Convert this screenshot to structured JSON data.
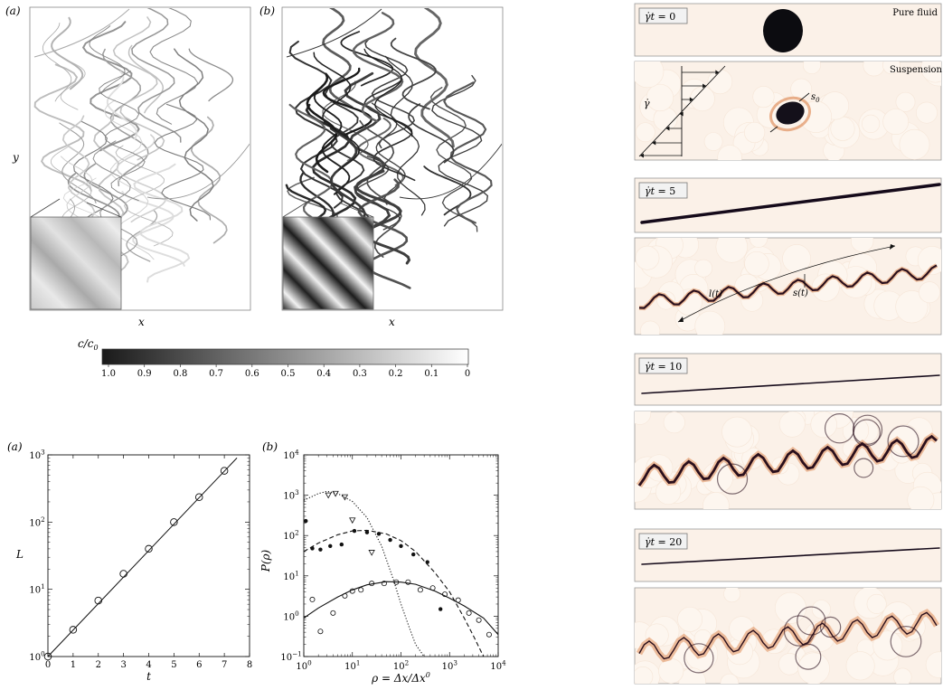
{
  "top_panels": {
    "panel_a_label": "(a)",
    "panel_b_label": "(b)",
    "xlabel": "x",
    "ylabel": "y"
  },
  "colorbar": {
    "label": "c/c",
    "label_sub": "0",
    "ticks": [
      "1.0",
      "0.9",
      "0.8",
      "0.7",
      "0.6",
      "0.5",
      "0.4",
      "0.3",
      "0.2",
      "0.1",
      "0"
    ]
  },
  "colors": {
    "ink": "#111111",
    "image_background": "#fbf1e8",
    "strand_dark": "#2a0f1c",
    "strand_orange": "#d9773a",
    "particle": "#fdf6ef"
  },
  "chart_data": [
    {
      "type": "scatter",
      "panel_label": "(a)",
      "xlabel": "t",
      "ylabel": "L",
      "xlim": [
        0,
        8
      ],
      "ylim": [
        1,
        1000
      ],
      "y_scale": "log",
      "x_ticks": [
        "0",
        "1",
        "2",
        "3",
        "4",
        "5",
        "6",
        "7",
        "8"
      ],
      "y_ticks": [
        {
          "value": 1,
          "base": "10",
          "exp": "0"
        },
        {
          "value": 10,
          "base": "10",
          "exp": "1"
        },
        {
          "value": 100,
          "base": "10",
          "exp": "2"
        },
        {
          "value": 1000,
          "base": "10",
          "exp": "3"
        }
      ],
      "series": [
        {
          "style": "open-circle",
          "x": [
            0,
            1,
            2,
            3,
            4,
            5,
            6,
            7
          ],
          "y": [
            1,
            2.5,
            6.8,
            17,
            40,
            100,
            235,
            580
          ]
        }
      ],
      "fit_line": {
        "x": [
          0,
          7.5
        ],
        "y": [
          1,
          900
        ]
      }
    },
    {
      "type": "scatter",
      "panel_label": "(b)",
      "xlabel": "ρ = Δx/Δx",
      "xlabel_sup": "0",
      "ylabel": "P(ρ)",
      "xlim": [
        1,
        10000
      ],
      "ylim": [
        0.1,
        10000
      ],
      "x_scale": "log",
      "y_scale": "log",
      "x_ticks": [
        {
          "value": 1,
          "base": "10",
          "exp": "0"
        },
        {
          "value": 10,
          "base": "10",
          "exp": "1"
        },
        {
          "value": 100,
          "base": "10",
          "exp": "2"
        },
        {
          "value": 1000,
          "base": "10",
          "exp": "3"
        },
        {
          "value": 10000,
          "base": "10",
          "exp": "4"
        }
      ],
      "y_ticks": [
        {
          "value": 0.1,
          "base": "10",
          "exp": "−1"
        },
        {
          "value": 1,
          "base": "10",
          "exp": "0"
        },
        {
          "value": 10,
          "base": "10",
          "exp": "1"
        },
        {
          "value": 100,
          "base": "10",
          "exp": "2"
        },
        {
          "value": 1000,
          "base": "10",
          "exp": "3"
        },
        {
          "value": 10000,
          "base": "10",
          "exp": "4"
        }
      ],
      "series": [
        {
          "style": "open-triangle-down",
          "x": [
            3.2,
            4.5,
            7,
            10,
            25
          ],
          "y": [
            1000,
            1100,
            900,
            240,
            38
          ]
        },
        {
          "style": "filled-dot",
          "x": [
            1.1,
            1.5,
            2.2,
            3.5,
            6,
            11,
            20,
            35,
            60,
            100,
            180,
            350,
            650
          ],
          "y": [
            230,
            48,
            45,
            55,
            60,
            130,
            120,
            110,
            78,
            55,
            34,
            22,
            1.5
          ]
        },
        {
          "style": "open-circle",
          "x": [
            1.5,
            2.2,
            4,
            7,
            10,
            15,
            25,
            45,
            80,
            140,
            250,
            450,
            800,
            1500,
            2500,
            4000,
            6500
          ],
          "y": [
            2.6,
            0.42,
            1.2,
            3.2,
            4.2,
            4.5,
            6.5,
            6.5,
            7,
            7,
            4.5,
            5,
            3.5,
            2.5,
            1.2,
            0.8,
            0.35
          ]
        }
      ],
      "fit_curves": [
        {
          "style": "dotted",
          "x": [
            1,
            2,
            3,
            5,
            10,
            20,
            40,
            70,
            100,
            150,
            200,
            300
          ],
          "y": [
            750,
            1100,
            1250,
            1100,
            700,
            280,
            55,
            8,
            2,
            0.5,
            0.2,
            0.1
          ]
        },
        {
          "style": "dashed",
          "x": [
            1,
            2,
            5,
            10,
            20,
            50,
            100,
            200,
            500,
            1000,
            2000,
            3000,
            5000
          ],
          "y": [
            40,
            65,
            105,
            130,
            135,
            110,
            75,
            40,
            12,
            4,
            0.9,
            0.35,
            0.1
          ]
        },
        {
          "style": "solid",
          "x": [
            1,
            2,
            5,
            10,
            20,
            50,
            100,
            200,
            500,
            1000,
            2000,
            5000,
            10000
          ],
          "y": [
            0.9,
            1.6,
            3.0,
            4.5,
            6.0,
            7.2,
            7.0,
            6.2,
            4.2,
            2.8,
            1.8,
            0.9,
            0.35
          ]
        }
      ]
    }
  ],
  "experiment": {
    "pure_fluid_label": "Pure fluid",
    "suspension_label": "Suspension",
    "shear_rate_symbol": "γ̇",
    "s0_label": "s",
    "s0_sub": "0",
    "lt_label": "l(t)",
    "st_label": "s(t)",
    "time_labels": [
      {
        "lhs": "γ̇t",
        "rhs": "0"
      },
      {
        "lhs": "γ̇t",
        "rhs": "5"
      },
      {
        "lhs": "γ̇t",
        "rhs": "10"
      },
      {
        "lhs": "γ̇t",
        "rhs": "20"
      }
    ]
  }
}
